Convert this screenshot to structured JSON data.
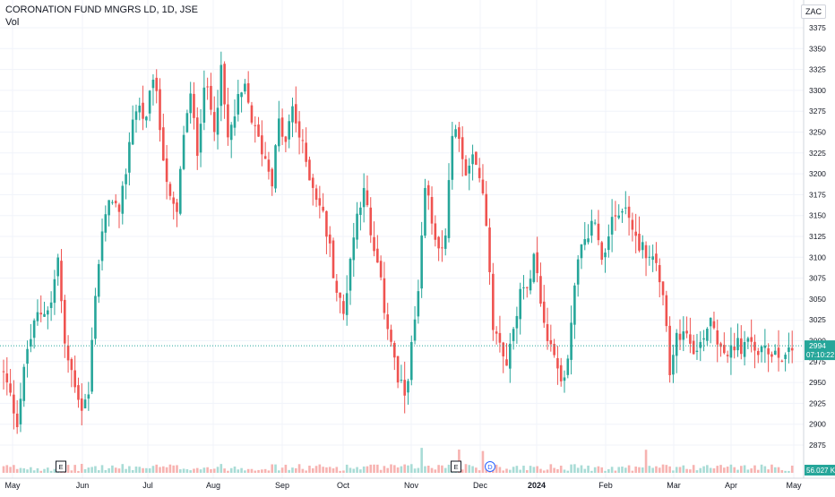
{
  "header": {
    "symbol_line": "CORONATION FUND MNGRS LD, 1D, JSE",
    "volume_label": "Vol",
    "currency": "ZAC"
  },
  "price_axis": {
    "ticks": [
      2875,
      2900,
      2925,
      2950,
      2975,
      3000,
      3025,
      3050,
      3075,
      3100,
      3125,
      3150,
      3175,
      3200,
      3225,
      3250,
      3275,
      3300,
      3325,
      3350,
      3375
    ]
  },
  "last_price": {
    "value": "2994",
    "countdown": "07:10:22",
    "color": "#26a69a"
  },
  "volume_badge": {
    "value": "56.027 K",
    "color": "#26a69a"
  },
  "time_axis": {
    "labels": [
      "May",
      "Jun",
      "Jul",
      "Aug",
      "Sep",
      "Oct",
      "Nov",
      "Dec",
      "2024",
      "Feb",
      "Mar",
      "Apr",
      "May"
    ]
  },
  "event_markers": [
    "E",
    "E",
    "D"
  ],
  "colors": {
    "up": "#26a69a",
    "down": "#ef5350",
    "grid": "#f0f3fa"
  },
  "chart_data": {
    "type": "candlestick",
    "title": "CORONATION FUND MNGRS LD, 1D, JSE",
    "ylim": [
      2860,
      3390
    ],
    "close_path": [
      [
        0,
        2960
      ],
      [
        4,
        2905
      ],
      [
        7,
        2990
      ],
      [
        10,
        3030
      ],
      [
        14,
        3045
      ],
      [
        16,
        3100
      ],
      [
        18,
        2990
      ],
      [
        21,
        2950
      ],
      [
        23,
        2920
      ],
      [
        25,
        2935
      ],
      [
        27,
        3060
      ],
      [
        29,
        3130
      ],
      [
        32,
        3175
      ],
      [
        34,
        3145
      ],
      [
        36,
        3205
      ],
      [
        38,
        3270
      ],
      [
        40,
        3280
      ],
      [
        42,
        3260
      ],
      [
        44,
        3320
      ],
      [
        47,
        3225
      ],
      [
        49,
        3165
      ],
      [
        51,
        3150
      ],
      [
        53,
        3250
      ],
      [
        55,
        3290
      ],
      [
        57,
        3230
      ],
      [
        59,
        3310
      ],
      [
        62,
        3260
      ],
      [
        64,
        3320
      ],
      [
        66,
        3240
      ],
      [
        69,
        3285
      ],
      [
        71,
        3300
      ],
      [
        74,
        3250
      ],
      [
        76,
        3230
      ],
      [
        79,
        3195
      ],
      [
        81,
        3260
      ],
      [
        83,
        3235
      ],
      [
        85,
        3280
      ],
      [
        87,
        3245
      ],
      [
        90,
        3200
      ],
      [
        92,
        3175
      ],
      [
        94,
        3150
      ],
      [
        96,
        3110
      ],
      [
        98,
        3060
      ],
      [
        100,
        3030
      ],
      [
        102,
        3100
      ],
      [
        104,
        3150
      ],
      [
        106,
        3190
      ],
      [
        108,
        3120
      ],
      [
        110,
        3090
      ],
      [
        112,
        3040
      ],
      [
        114,
        3000
      ],
      [
        116,
        2950
      ],
      [
        118,
        2935
      ],
      [
        120,
        2990
      ],
      [
        122,
        3055
      ],
      [
        124,
        3180
      ],
      [
        126,
        3150
      ],
      [
        128,
        3110
      ],
      [
        130,
        3130
      ],
      [
        132,
        3240
      ],
      [
        134,
        3250
      ],
      [
        136,
        3195
      ],
      [
        138,
        3215
      ],
      [
        140,
        3195
      ],
      [
        142,
        3145
      ],
      [
        144,
        3020
      ],
      [
        146,
        3005
      ],
      [
        148,
        2975
      ],
      [
        150,
        3010
      ],
      [
        152,
        3070
      ],
      [
        154,
        3055
      ],
      [
        156,
        3115
      ],
      [
        158,
        3050
      ],
      [
        160,
        3010
      ],
      [
        162,
        2985
      ],
      [
        164,
        2950
      ],
      [
        166,
        2975
      ],
      [
        168,
        3070
      ],
      [
        170,
        3110
      ],
      [
        172,
        3130
      ],
      [
        174,
        3150
      ],
      [
        176,
        3095
      ],
      [
        178,
        3135
      ],
      [
        180,
        3140
      ],
      [
        182,
        3160
      ],
      [
        184,
        3150
      ],
      [
        186,
        3120
      ],
      [
        188,
        3115
      ],
      [
        190,
        3100
      ],
      [
        192,
        3095
      ],
      [
        194,
        3065
      ],
      [
        196,
        2955
      ],
      [
        198,
        3000
      ],
      [
        200,
        3015
      ],
      [
        202,
        3005
      ],
      [
        204,
        2985
      ],
      [
        206,
        3010
      ],
      [
        208,
        3030
      ],
      [
        210,
        3005
      ],
      [
        212,
        2990
      ],
      [
        214,
        2985
      ],
      [
        216,
        2995
      ],
      [
        218,
        2990
      ],
      [
        220,
        3000
      ],
      [
        222,
        2985
      ],
      [
        224,
        2985
      ],
      [
        226,
        2990
      ],
      [
        228,
        2985
      ],
      [
        230,
        2985
      ],
      [
        232,
        2994
      ]
    ],
    "volume": {
      "unit": "K",
      "last": 56.027,
      "spikes": [
        [
          123,
          "up"
        ],
        [
          134,
          "down"
        ],
        [
          141,
          "up"
        ],
        [
          189,
          "down"
        ]
      ]
    }
  }
}
